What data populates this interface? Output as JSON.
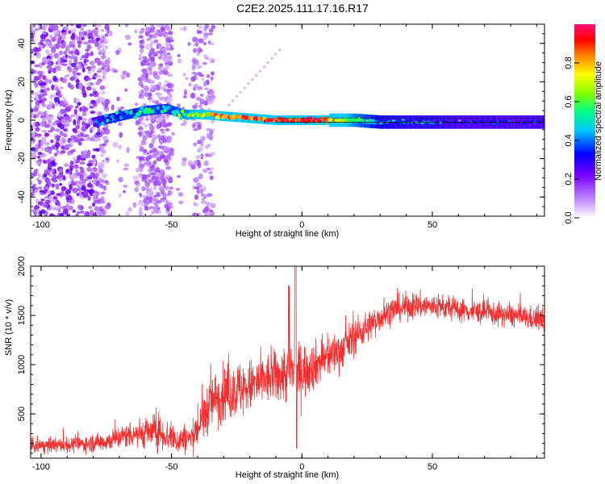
{
  "title": "C2E2.2025.111.17.16.R17",
  "chart_data": [
    {
      "type": "heatmap",
      "xlabel": "Height of straight line (km)",
      "ylabel": "Frequency (Hz)",
      "xlim": [
        -104,
        93
      ],
      "ylim": [
        -50,
        50
      ],
      "x_ticks": [
        -100,
        -50,
        0,
        50
      ],
      "x_tick_labels": [
        "-100",
        "-50",
        "0",
        "50"
      ],
      "y_ticks": [
        -40,
        -20,
        0,
        20,
        40
      ],
      "y_tick_labels": [
        "-40",
        "-20",
        "0",
        "20",
        "40"
      ],
      "colorbar": {
        "label": "Normalized spectral amplitude",
        "range": [
          0,
          1
        ],
        "ticks": [
          0.0,
          0.2,
          0.4,
          0.6,
          0.8
        ],
        "tick_labels": [
          "0.0",
          "0.2",
          "0.4",
          "0.6",
          "0.8"
        ]
      },
      "ridge": {
        "x": [
          -80,
          -70,
          -60,
          -52,
          -45,
          -38,
          -30,
          -20,
          -10,
          0,
          10,
          20,
          30,
          40,
          50,
          60,
          70,
          80,
          93
        ],
        "frequency": [
          -1,
          2,
          5,
          6,
          3,
          3,
          2,
          1,
          0,
          0,
          0,
          0,
          -1,
          -1,
          -1,
          -1,
          -1,
          -1,
          -1
        ],
        "amplitude": [
          0.3,
          0.45,
          0.5,
          0.45,
          0.55,
          0.7,
          0.85,
          0.9,
          0.9,
          0.95,
          0.85,
          0.55,
          0.4,
          0.35,
          0.35,
          0.3,
          0.3,
          0.3,
          0.3
        ]
      }
    },
    {
      "type": "line",
      "xlabel": "Height of straight line (km)",
      "ylabel": "SNR (10 * v/v)",
      "xlim": [
        -104,
        93
      ],
      "ylim": [
        50,
        2000
      ],
      "x_ticks": [
        -100,
        -50,
        0,
        50
      ],
      "x_tick_labels": [
        "-100",
        "-50",
        "0",
        "50"
      ],
      "y_ticks": [
        500,
        1000,
        1500,
        2000
      ],
      "y_tick_labels": [
        "500",
        "1000",
        "1500",
        "2000"
      ],
      "color": "#f03030",
      "series": [
        {
          "x": [
            -104,
            -95,
            -85,
            -75,
            -65,
            -55,
            -48,
            -42,
            -38,
            -35,
            -30,
            -25,
            -20,
            -15,
            -10,
            -5,
            0,
            5,
            10,
            15,
            20,
            25,
            30,
            35,
            40,
            45,
            50,
            55,
            60,
            65,
            70,
            75,
            80,
            85,
            90,
            93
          ],
          "values": [
            170,
            180,
            190,
            220,
            300,
            320,
            230,
            260,
            450,
            620,
            700,
            740,
            780,
            830,
            880,
            900,
            930,
            1000,
            1080,
            1150,
            1280,
            1380,
            1480,
            1560,
            1590,
            1600,
            1590,
            1580,
            1560,
            1540,
            1530,
            1510,
            1500,
            1480,
            1460,
            1450
          ],
          "spread": [
            80,
            80,
            90,
            110,
            150,
            200,
            160,
            180,
            260,
            300,
            320,
            320,
            300,
            280,
            300,
            320,
            320,
            260,
            240,
            220,
            200,
            180,
            160,
            150,
            150,
            150,
            140,
            140,
            130,
            130,
            130,
            130,
            130,
            130,
            130,
            130
          ]
        }
      ]
    }
  ]
}
